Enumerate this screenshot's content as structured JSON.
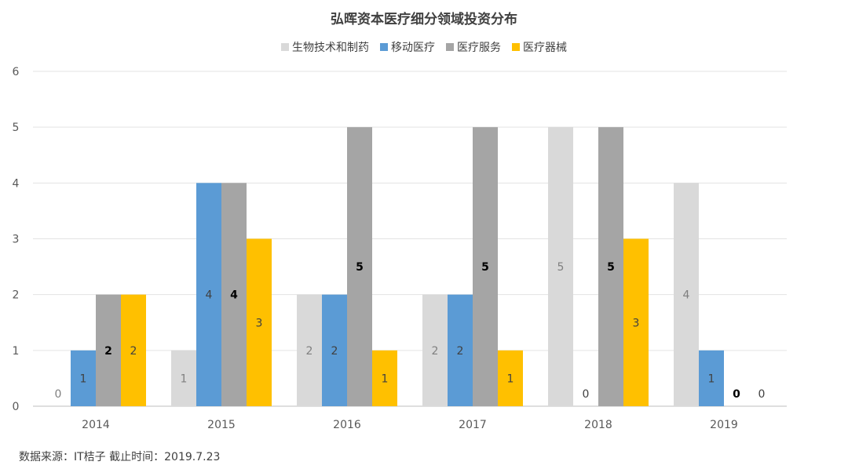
{
  "chart_data": {
    "type": "bar",
    "title": "弘晖资本医疗细分领域投资分布",
    "categories": [
      "2014",
      "2015",
      "2016",
      "2017",
      "2018",
      "2019"
    ],
    "series": [
      {
        "name": "生物技术和制药",
        "color": "#d9d9d9",
        "label_color": "#7f7f7f",
        "values": [
          0,
          1,
          2,
          2,
          5,
          4
        ]
      },
      {
        "name": "移动医疗",
        "color": "#5b9bd5",
        "label_color": "#404040",
        "values": [
          1,
          4,
          2,
          2,
          0,
          1
        ]
      },
      {
        "name": "医疗服务",
        "color": "#a5a5a5",
        "label_color": "#000000",
        "values": [
          2,
          4,
          5,
          5,
          5,
          0
        ]
      },
      {
        "name": "医疗器械",
        "color": "#ffc000",
        "label_color": "#404040",
        "values": [
          2,
          3,
          1,
          1,
          3,
          0
        ]
      }
    ],
    "ylim": [
      0,
      6
    ],
    "yticks": [
      "0",
      "1",
      "2",
      "3",
      "4",
      "5",
      "6"
    ],
    "grid": true,
    "legend": "top-center",
    "xlabel": "",
    "ylabel": ""
  },
  "source_note": "数据来源：IT桔子  截止时间：2019.7.23"
}
